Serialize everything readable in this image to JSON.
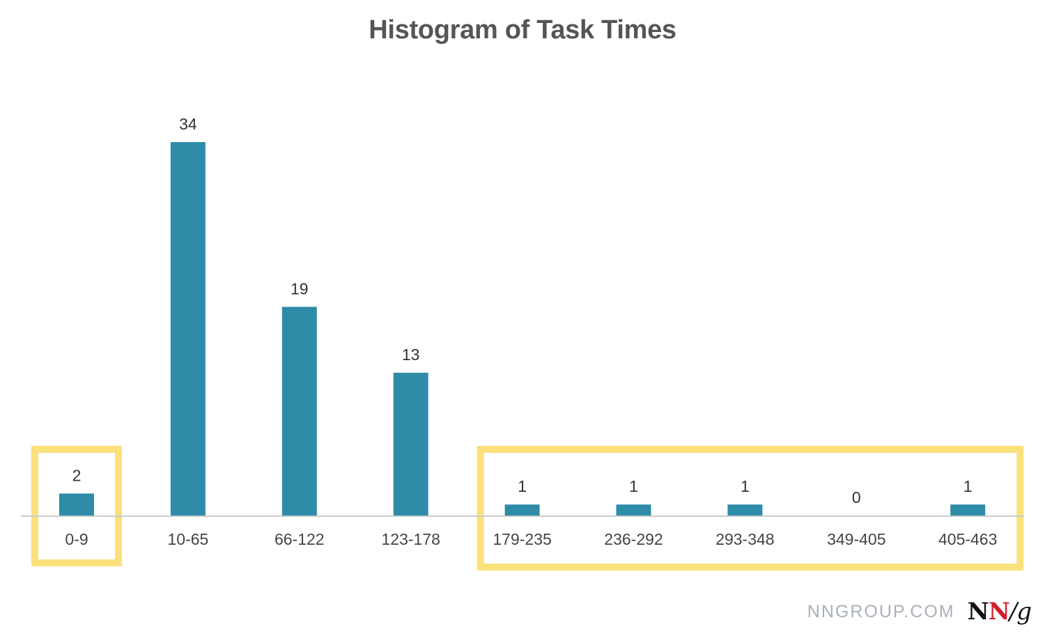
{
  "chart_data": {
    "type": "bar",
    "title": "Histogram of Task Times",
    "xlabel": "",
    "ylabel": "",
    "categories": [
      "0-9",
      "10-65",
      "66-122",
      "123-178",
      "179-235",
      "236-292",
      "293-348",
      "349-405",
      "405-463"
    ],
    "values": [
      2,
      34,
      19,
      13,
      1,
      1,
      1,
      0,
      1
    ],
    "ylim": [
      0,
      34
    ],
    "grid": false,
    "legend": "none",
    "highlight_groups": [
      [
        "0-9"
      ],
      [
        "179-235",
        "236-292",
        "293-348",
        "349-405",
        "405-463"
      ]
    ]
  },
  "colors": {
    "bar": "#2e8ca8",
    "highlight": "#fbe17c",
    "axis": "#cccccc",
    "title": "#555555"
  },
  "footer": {
    "site": "NNGROUP.COM",
    "logo_n1": "N",
    "logo_n2": "N",
    "logo_rest": "/g"
  }
}
